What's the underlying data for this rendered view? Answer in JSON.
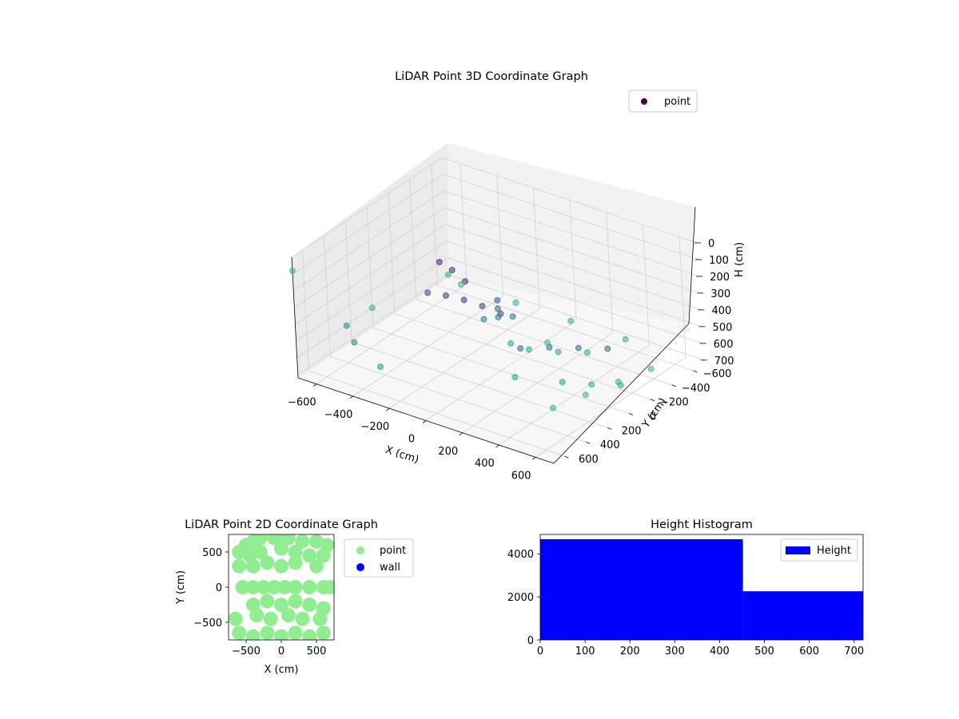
{
  "chart_data": [
    {
      "type": "scatter",
      "title": "LiDAR Point 3D Coordinate Graph",
      "projection": "3d",
      "xlabel": "X (cm)",
      "ylabel": "Y (cm)",
      "zlabel": "H (cm)",
      "xticks": [
        "−600",
        "−400",
        "−200",
        "0",
        "200",
        "400",
        "600"
      ],
      "yticks": [
        "−600",
        "−400",
        "−200",
        "0",
        "200",
        "400",
        "600"
      ],
      "zticks": [
        "0",
        "100",
        "200",
        "300",
        "400",
        "500",
        "600",
        "700"
      ],
      "xlim": [
        -700,
        700
      ],
      "ylim": [
        -700,
        700
      ],
      "zlim": [
        0,
        720
      ],
      "z_axis_inverted": true,
      "grid": true,
      "legend": {
        "entries": [
          "point"
        ],
        "placement": "top-right"
      },
      "colormap": "viridis",
      "colors": {
        "marker_legend": "#440154",
        "low_color": "#440154",
        "high_color": "#7ad151"
      },
      "series": [
        {
          "name": "point",
          "note_points": "[x, y, h] in cm",
          "points": [
            [
              -200,
              300,
              200
            ],
            [
              -100,
              300,
              180
            ],
            [
              0,
              300,
              170
            ],
            [
              100,
              300,
              170
            ],
            [
              200,
              300,
              180
            ],
            [
              -250,
              100,
              120
            ],
            [
              -150,
              150,
              110
            ],
            [
              -50,
              200,
              120
            ],
            [
              0,
              0,
              400
            ],
            [
              50,
              -50,
              400
            ],
            [
              -50,
              50,
              410
            ],
            [
              0,
              0,
              350
            ],
            [
              0,
              0,
              300
            ],
            [
              100,
              -100,
              600
            ],
            [
              200,
              -200,
              620
            ],
            [
              300,
              -300,
              630
            ],
            [
              0,
              -100,
              600
            ],
            [
              200,
              200,
              600
            ],
            [
              400,
              100,
              600
            ],
            [
              500,
              0,
              620
            ],
            [
              600,
              -100,
              630
            ],
            [
              300,
              300,
              350
            ],
            [
              400,
              200,
              350
            ],
            [
              500,
              100,
              360
            ],
            [
              600,
              0,
              370
            ],
            [
              -600,
              400,
              500
            ],
            [
              -500,
              500,
              520
            ],
            [
              -300,
              600,
              550
            ],
            [
              -700,
              0,
              600
            ],
            [
              650,
              600,
              450
            ],
            [
              650,
              300,
              500
            ],
            [
              650,
              0,
              550
            ],
            [
              650,
              -300,
              600
            ],
            [
              300,
              -650,
              700
            ],
            [
              0,
              -650,
              700
            ],
            [
              -300,
              -650,
              700
            ],
            [
              -600,
              -650,
              700
            ],
            [
              -700,
              700,
              80
            ],
            [
              700,
              700,
              0
            ],
            [
              -700,
              -700,
              700
            ]
          ]
        }
      ]
    },
    {
      "type": "scatter",
      "title": "LiDAR Point 2D Coordinate Graph",
      "xlabel": "X (cm)",
      "ylabel": "Y (cm)",
      "xticks": [
        "−500",
        "0",
        "500"
      ],
      "yticks": [
        "500",
        "0",
        "−500"
      ],
      "xlim": [
        -750,
        750
      ],
      "ylim": [
        -750,
        750
      ],
      "legend": {
        "entries": [
          "point",
          "wall"
        ],
        "placement": "right-outside"
      },
      "colors": {
        "point": "#90ee90",
        "wall": "#0000ff"
      },
      "series": [
        {
          "name": "point",
          "note_points": "[x, y] in cm",
          "points": [
            [
              -500,
              600
            ],
            [
              -400,
              650
            ],
            [
              -300,
              700
            ],
            [
              -100,
              700
            ],
            [
              0,
              650
            ],
            [
              100,
              700
            ],
            [
              300,
              650
            ],
            [
              500,
              650
            ],
            [
              650,
              600
            ],
            [
              -600,
              500
            ],
            [
              -450,
              450
            ],
            [
              -300,
              500
            ],
            [
              0,
              550
            ],
            [
              200,
              500
            ],
            [
              400,
              450
            ],
            [
              600,
              450
            ],
            [
              -600,
              300
            ],
            [
              -400,
              300
            ],
            [
              -200,
              350
            ],
            [
              0,
              300
            ],
            [
              200,
              350
            ],
            [
              500,
              300
            ],
            [
              -550,
              0
            ],
            [
              -400,
              0
            ],
            [
              -250,
              0
            ],
            [
              -100,
              0
            ],
            [
              50,
              0
            ],
            [
              200,
              0
            ],
            [
              400,
              0
            ],
            [
              600,
              0
            ],
            [
              700,
              0
            ],
            [
              -400,
              -250
            ],
            [
              -200,
              -200
            ],
            [
              0,
              -250
            ],
            [
              200,
              -200
            ],
            [
              400,
              -250
            ],
            [
              600,
              -300
            ],
            [
              -650,
              -450
            ],
            [
              -350,
              -400
            ],
            [
              -150,
              -450
            ],
            [
              100,
              -400
            ],
            [
              300,
              -450
            ],
            [
              550,
              -450
            ],
            [
              -600,
              -650
            ],
            [
              -400,
              -700
            ],
            [
              -200,
              -650
            ],
            [
              0,
              -700
            ],
            [
              200,
              -650
            ],
            [
              400,
              -700
            ],
            [
              600,
              -650
            ]
          ]
        },
        {
          "name": "wall",
          "points": []
        }
      ]
    },
    {
      "type": "bar",
      "title": "Height Histogram",
      "subtype": "histogram",
      "xlabel": "",
      "ylabel": "",
      "xticks": [
        "0",
        "100",
        "200",
        "300",
        "400",
        "500",
        "600",
        "700"
      ],
      "yticks": [
        "0",
        "2000",
        "4000"
      ],
      "xlim": [
        0,
        720
      ],
      "ylim": [
        0,
        4900
      ],
      "bins": [
        {
          "from": 0,
          "to": 452,
          "count": 4680
        },
        {
          "from": 452,
          "to": 720,
          "count": 2260
        }
      ],
      "legend": {
        "entries": [
          "Height"
        ],
        "placement": "top-right"
      },
      "colors": {
        "bar": "#0000ff"
      }
    }
  ]
}
